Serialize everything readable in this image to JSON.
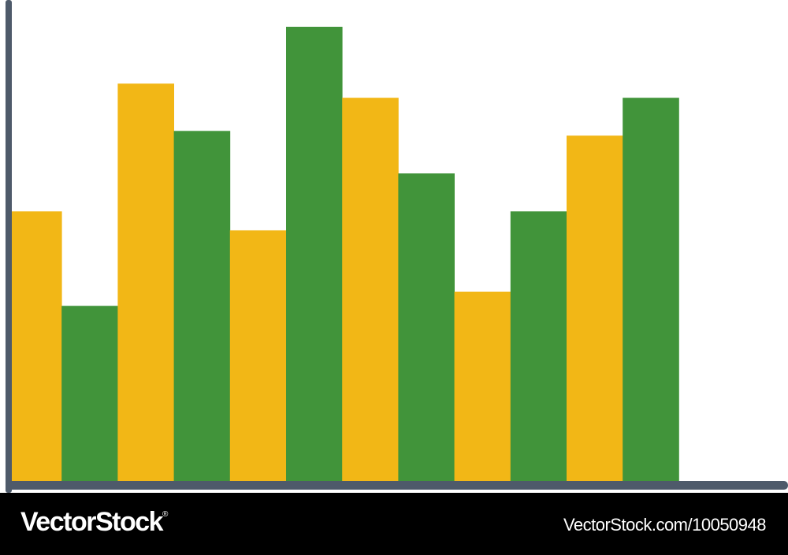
{
  "chart_data": {
    "type": "bar",
    "categories": [
      "",
      "",
      "",
      "",
      "",
      "",
      "",
      "",
      "",
      "",
      "",
      ""
    ],
    "values": [
      57,
      37,
      84,
      74,
      53,
      96,
      81,
      65,
      40,
      57,
      73,
      81
    ],
    "bar_colors": [
      "#f2b716",
      "#41943a",
      "#f2b716",
      "#41943a",
      "#f2b716",
      "#41943a",
      "#f2b716",
      "#41943a",
      "#f2b716",
      "#41943a",
      "#f2b716",
      "#41943a"
    ],
    "title": "",
    "xlabel": "",
    "ylabel": "",
    "ylim": [
      0,
      100
    ],
    "grid": false,
    "axis_color": "#4e5a6a"
  },
  "watermark": {
    "brand": "VectorStock",
    "brand_mark": "®",
    "image_id": "VectorStock.com/10050948"
  }
}
